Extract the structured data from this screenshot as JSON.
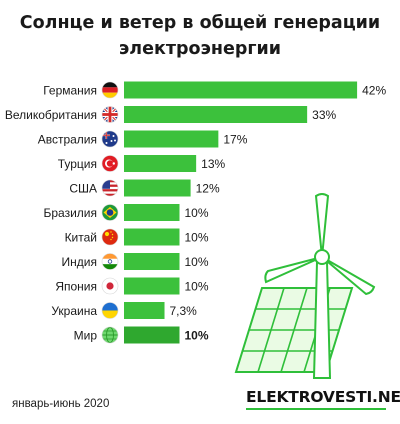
{
  "title": "Солнце и ветер в общей генерации электроэнергии",
  "footer": {
    "period": "январь-июнь 2020",
    "brand": "ELEKTROVESTI.NET"
  },
  "colors": {
    "bar": "#3cc13c",
    "bar_highlight": "#2fa82f",
    "brand_accent": "#2fbf3a"
  },
  "chart_data": {
    "type": "bar",
    "orientation": "horizontal",
    "categories": [
      "Германия",
      "Великобритания",
      "Австралия",
      "Турция",
      "США",
      "Бразилия",
      "Китай",
      "Индия",
      "Япония",
      "Украина",
      "Мир"
    ],
    "flags": [
      "germany-flag-icon",
      "uk-flag-icon",
      "australia-flag-icon",
      "turkey-flag-icon",
      "usa-flag-icon",
      "brazil-flag-icon",
      "china-flag-icon",
      "india-flag-icon",
      "japan-flag-icon",
      "ukraine-flag-icon",
      "globe-icon"
    ],
    "values": [
      42,
      33,
      17,
      13,
      12,
      10,
      10,
      10,
      10,
      7.3,
      10
    ],
    "value_labels": [
      "42%",
      "33%",
      "17%",
      "13%",
      "12%",
      "10%",
      "10%",
      "10%",
      "10%",
      "7,3%",
      "10%"
    ],
    "highlight": "Мир",
    "grid": false,
    "legend": "none"
  }
}
